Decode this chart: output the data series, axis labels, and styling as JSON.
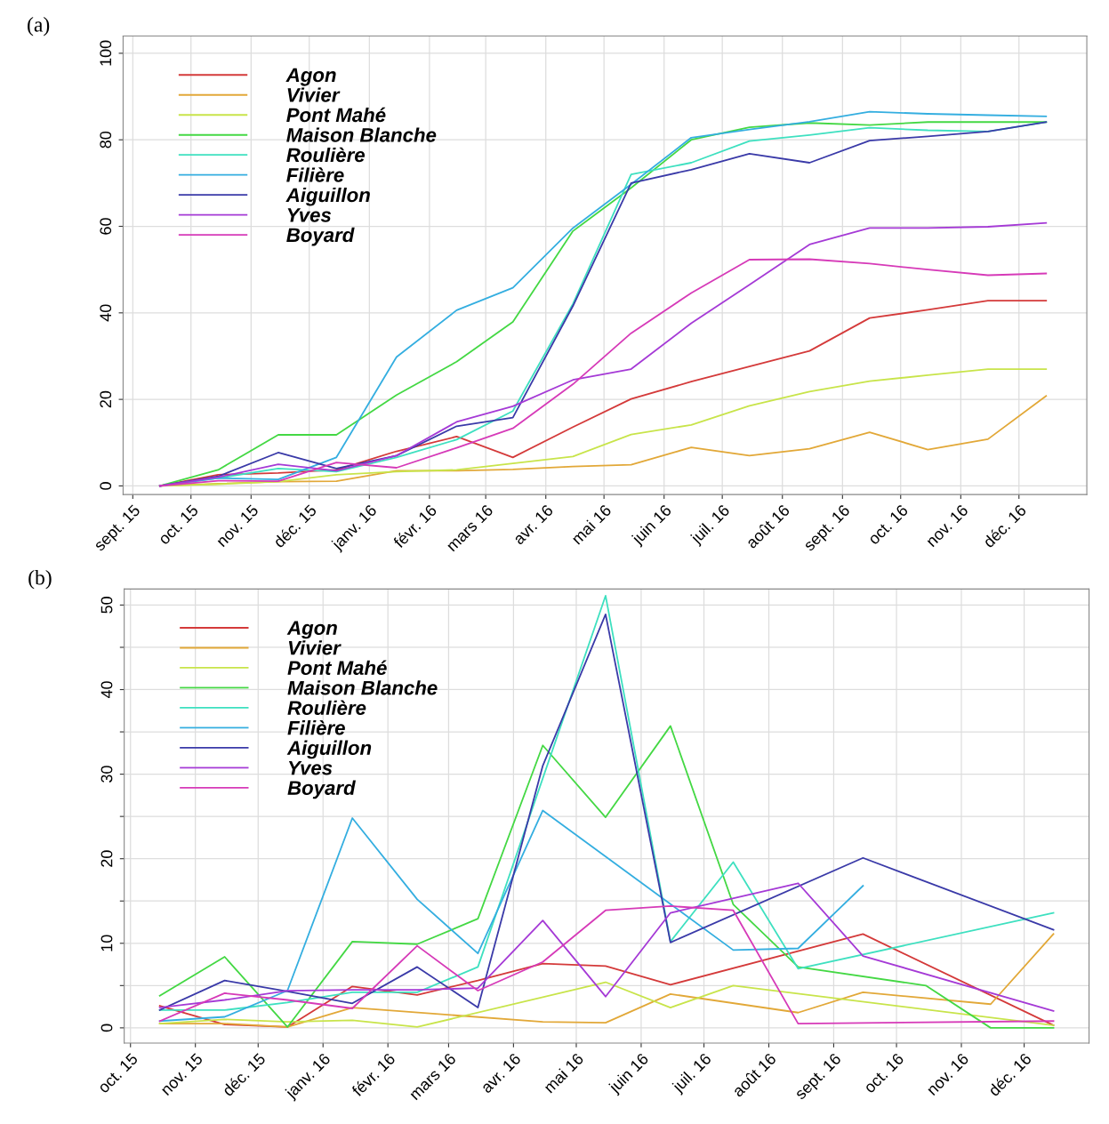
{
  "chart_data": [
    {
      "type": "line",
      "annotations": [
        "(a)"
      ],
      "legend": "top left",
      "grid": true,
      "marker": "none",
      "line_style": "solid",
      "x": [
        "2015-09-15",
        "2015-10-15",
        "2015-11-15",
        "2015-12-15",
        "2016-01-15",
        "2016-02-15",
        "2016-03-15",
        "2016-04-15",
        "2016-05-15",
        "2016-06-15",
        "2016-07-15",
        "2016-08-15",
        "2016-09-15",
        "2016-10-15",
        "2016-11-15",
        "2016-12-15"
      ],
      "xlim": [
        "2015-08-27",
        "2017-01-05"
      ],
      "xticks": [
        {
          "value": "2015-09-01",
          "label": "sept. 15"
        },
        {
          "value": "2015-10-01",
          "label": "oct. 15"
        },
        {
          "value": "2015-11-01",
          "label": "nov. 15"
        },
        {
          "value": "2015-12-01",
          "label": "déc. 15"
        },
        {
          "value": "2016-01-01",
          "label": "janv. 16"
        },
        {
          "value": "2016-02-01",
          "label": "févr. 16"
        },
        {
          "value": "2016-03-01",
          "label": "mars 16"
        },
        {
          "value": "2016-04-01",
          "label": "avr. 16"
        },
        {
          "value": "2016-05-01",
          "label": "mai 16"
        },
        {
          "value": "2016-06-01",
          "label": "juin 16"
        },
        {
          "value": "2016-07-01",
          "label": "juil. 16"
        },
        {
          "value": "2016-08-01",
          "label": "août 16"
        },
        {
          "value": "2016-09-01",
          "label": "sept. 16"
        },
        {
          "value": "2016-10-01",
          "label": "oct. 16"
        },
        {
          "value": "2016-11-01",
          "label": "nov. 16"
        },
        {
          "value": "2016-12-01",
          "label": "déc. 16"
        }
      ],
      "ylim": [
        -2,
        104
      ],
      "yticks": [
        0,
        20,
        40,
        60,
        80,
        100
      ],
      "series": [
        {
          "name": "Agon",
          "color": "#d43a3a",
          "values": [
            0,
            2.6,
            3,
            3.7,
            8,
            11.4,
            6.6,
            13.6,
            20.1,
            24.1,
            27.6,
            31.2,
            38.8,
            40.7,
            42.8,
            42.8
          ]
        },
        {
          "name": "Vivier",
          "color": "#e2a838",
          "values": [
            0,
            0.5,
            1,
            1.1,
            3.5,
            3.5,
            3.8,
            4.5,
            4.9,
            8.9,
            7.0,
            8.6,
            12.4,
            8.4,
            10.8,
            20.8
          ]
        },
        {
          "name": "Pont Mahé",
          "color": "#c8e44a",
          "values": [
            0,
            0.4,
            1,
            2.6,
            3.3,
            3.7,
            5.2,
            6.8,
            11.9,
            14.1,
            18.5,
            21.8,
            24.2,
            25.6,
            27,
            27
          ]
        },
        {
          "name": "Maison Blanche",
          "color": "#44d844",
          "values": [
            0,
            3.7,
            11.8,
            11.8,
            21,
            28.7,
            37.9,
            58.9,
            68.9,
            80,
            82.9,
            83.9,
            83.4,
            84.1,
            84.1,
            84.1
          ]
        },
        {
          "name": "Roulière",
          "color": "#3ee0c0",
          "values": [
            0,
            1.8,
            4,
            3.3,
            6.6,
            10.7,
            17.3,
            42.1,
            72,
            74.7,
            79.7,
            81.1,
            82.8,
            82.2,
            81.9,
            84.1
          ]
        },
        {
          "name": "Filière",
          "color": "#34aee0",
          "values": [
            0,
            1.8,
            1.5,
            6.6,
            29.8,
            40.6,
            45.8,
            59.6,
            69.7,
            80.5,
            82.4,
            84.2,
            86.5,
            86,
            85.7,
            85.4
          ]
        },
        {
          "name": "Aiguillon",
          "color": "#3a3aa8",
          "values": [
            0,
            2.2,
            7.7,
            4,
            7,
            13.8,
            15.8,
            41.6,
            70,
            73.1,
            76.8,
            74.7,
            79.8,
            80.8,
            81.9,
            84.1
          ]
        },
        {
          "name": "Yves",
          "color": "#a53ad6",
          "values": [
            0,
            2,
            5,
            3.5,
            7,
            14.8,
            18.4,
            24.5,
            27,
            37.6,
            46.5,
            55.8,
            59.6,
            59.6,
            59.9,
            60.8
          ]
        },
        {
          "name": "Boyard",
          "color": "#d63ab8",
          "values": [
            0,
            1.2,
            1.1,
            5.4,
            4.2,
            8.8,
            13.3,
            23.5,
            35.3,
            44.6,
            52.3,
            52.4,
            51.4,
            50,
            48.7,
            49.1
          ]
        }
      ]
    },
    {
      "type": "line",
      "annotations": [
        "(b)"
      ],
      "legend": "top left",
      "grid": true,
      "marker": "none",
      "line_style": "solid",
      "xlim": [
        "2015-09-28",
        "2017-01-01"
      ],
      "xticks": [
        {
          "value": "2015-10-01",
          "label": "oct. 15"
        },
        {
          "value": "2015-11-01",
          "label": "nov. 15"
        },
        {
          "value": "2015-12-01",
          "label": "déc. 15"
        },
        {
          "value": "2016-01-01",
          "label": "janv. 16"
        },
        {
          "value": "2016-02-01",
          "label": "févr. 16"
        },
        {
          "value": "2016-03-01",
          "label": "mars 16"
        },
        {
          "value": "2016-04-01",
          "label": "avr. 16"
        },
        {
          "value": "2016-05-01",
          "label": "mai 16"
        },
        {
          "value": "2016-06-01",
          "label": "juin 16"
        },
        {
          "value": "2016-07-01",
          "label": "juil. 16"
        },
        {
          "value": "2016-08-01",
          "label": "août 16"
        },
        {
          "value": "2016-09-01",
          "label": "sept. 16"
        },
        {
          "value": "2016-10-01",
          "label": "oct. 16"
        },
        {
          "value": "2016-11-01",
          "label": "nov. 16"
        },
        {
          "value": "2016-12-01",
          "label": "déc. 16"
        }
      ],
      "ylim": [
        -1.8,
        51.9
      ],
      "yticks": [
        0,
        {
          "value": 5,
          "label": null
        },
        10,
        {
          "value": 15,
          "label": null
        },
        20,
        {
          "value": 25,
          "label": null
        },
        30,
        {
          "value": 35,
          "label": null
        },
        40,
        {
          "value": 45,
          "label": null
        },
        50
      ],
      "series": [
        {
          "name": "Agon",
          "color": "#d43a3a",
          "x": [
            "2015-10-15",
            "2015-11-15",
            "2015-12-15",
            "2016-01-15",
            "2016-02-15",
            "2016-03-15",
            "2016-04-15",
            "2016-05-15",
            "2016-06-15",
            "2016-09-15",
            "2016-12-15"
          ],
          "values": [
            2.6,
            0.4,
            0.1,
            4.9,
            3.9,
            5.6,
            7.6,
            7.3,
            5.1,
            11.1,
            0.3
          ]
        },
        {
          "name": "Vivier",
          "color": "#e2a838",
          "x": [
            "2015-10-15",
            "2015-11-15",
            "2015-12-15",
            "2016-01-15",
            "2016-04-15",
            "2016-05-15",
            "2016-06-15",
            "2016-08-15",
            "2016-09-15",
            "2016-11-15",
            "2016-12-15"
          ],
          "values": [
            0.5,
            0.5,
            0.1,
            2.4,
            0.7,
            0.6,
            4.0,
            1.8,
            4.2,
            2.8,
            11.1
          ]
        },
        {
          "name": "Pont Mahé",
          "color": "#c8e44a",
          "x": [
            "2015-10-15",
            "2015-11-15",
            "2015-12-15",
            "2016-01-15",
            "2016-02-15",
            "2016-05-15",
            "2016-06-15",
            "2016-07-15",
            "2016-12-15"
          ],
          "values": [
            0.5,
            1.0,
            0.7,
            0.9,
            0.1,
            5.4,
            2.4,
            5.0,
            0.3
          ]
        },
        {
          "name": "Maison Blanche",
          "color": "#44d844",
          "x": [
            "2015-10-15",
            "2015-11-15",
            "2015-12-15",
            "2016-01-15",
            "2016-02-15",
            "2016-03-15",
            "2016-04-15",
            "2016-05-15",
            "2016-06-15",
            "2016-07-15",
            "2016-08-15",
            "2016-10-15",
            "2016-11-15",
            "2016-12-15"
          ],
          "values": [
            3.8,
            8.4,
            0.1,
            10.2,
            9.9,
            12.9,
            33.4,
            24.9,
            35.7,
            14.6,
            7.2,
            5.0,
            0.0,
            0.0
          ]
        },
        {
          "name": "Roulière",
          "color": "#3ee0c0",
          "x": [
            "2015-10-15",
            "2015-11-15",
            "2015-12-15",
            "2016-01-15",
            "2016-02-15",
            "2016-03-15",
            "2016-05-15",
            "2016-06-15",
            "2016-07-15",
            "2016-08-15",
            "2016-12-15"
          ],
          "values": [
            2.1,
            2.1,
            3.0,
            4.2,
            4.2,
            7.2,
            51.1,
            10.2,
            19.6,
            7.0,
            13.6
          ]
        },
        {
          "name": "Filière",
          "color": "#34aee0",
          "x": [
            "2015-10-15",
            "2015-11-15",
            "2015-12-15",
            "2016-01-15",
            "2016-02-15",
            "2016-03-15",
            "2016-04-15",
            "2016-07-15",
            "2016-08-15",
            "2016-09-15"
          ],
          "values": [
            0.8,
            1.3,
            4.4,
            24.8,
            15.2,
            8.8,
            25.7,
            9.2,
            9.4,
            16.8
          ]
        },
        {
          "name": "Aiguillon",
          "color": "#3a3aa8",
          "x": [
            "2015-10-15",
            "2015-11-15",
            "2015-12-15",
            "2016-01-15",
            "2016-02-15",
            "2016-03-15",
            "2016-04-15",
            "2016-05-15",
            "2016-06-15",
            "2016-09-15",
            "2016-12-15"
          ],
          "values": [
            2.1,
            5.6,
            4.3,
            2.9,
            7.2,
            2.4,
            31.0,
            48.9,
            10.1,
            20.1,
            11.6
          ]
        },
        {
          "name": "Yves",
          "color": "#a53ad6",
          "x": [
            "2015-10-15",
            "2015-11-15",
            "2015-12-15",
            "2016-01-15",
            "2016-02-15",
            "2016-03-15",
            "2016-04-15",
            "2016-05-15",
            "2016-06-15",
            "2016-08-15",
            "2016-09-15",
            "2016-12-15"
          ],
          "values": [
            2.4,
            3.3,
            4.4,
            4.5,
            4.5,
            4.7,
            12.7,
            3.7,
            13.6,
            17.1,
            8.5,
            2.0
          ]
        },
        {
          "name": "Boyard",
          "color": "#d63ab8",
          "x": [
            "2015-10-15",
            "2015-11-15",
            "2015-12-15",
            "2016-01-15",
            "2016-02-15",
            "2016-03-15",
            "2016-04-15",
            "2016-05-15",
            "2016-06-15",
            "2016-07-15",
            "2016-08-15",
            "2016-12-15"
          ],
          "values": [
            0.8,
            4.1,
            3.3,
            2.3,
            9.7,
            4.4,
            7.8,
            13.9,
            14.4,
            13.9,
            0.5,
            0.8
          ]
        }
      ]
    }
  ]
}
